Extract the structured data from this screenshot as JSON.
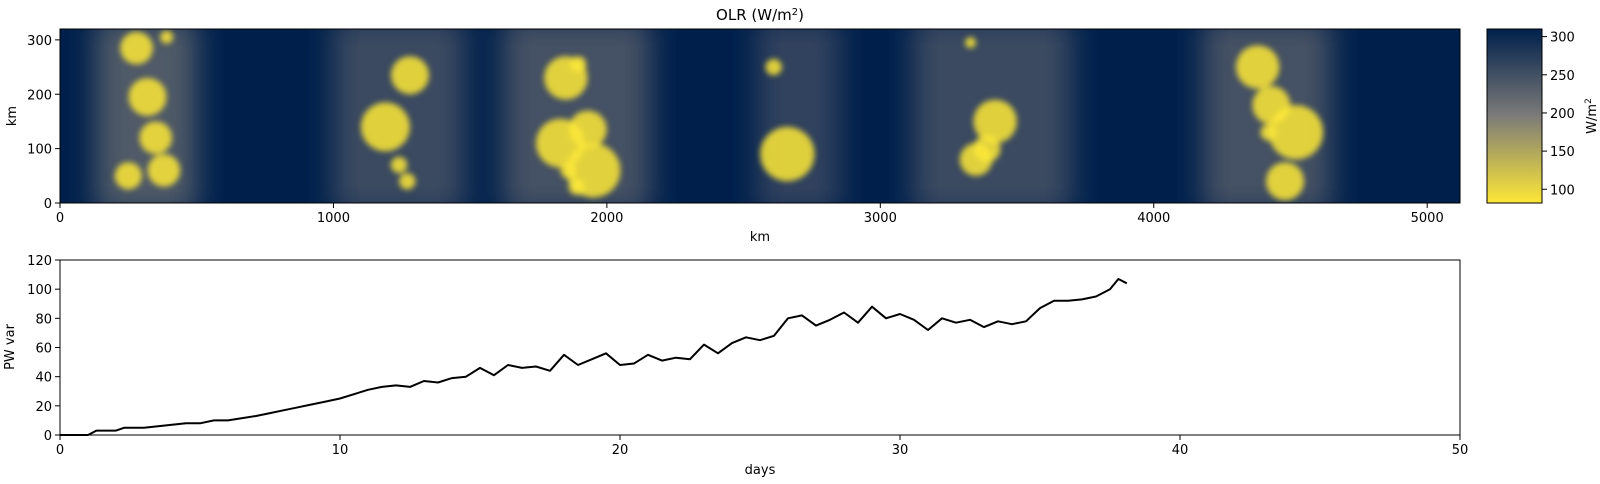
{
  "chart_data": [
    {
      "type": "heatmap",
      "title": "OLR (W/m2)",
      "title_main": "OLR (W/m",
      "title_sup": "2",
      "title_end": ")",
      "xlabel": "km",
      "ylabel": "km",
      "xlim": [
        0,
        5120
      ],
      "ylim": [
        0,
        320
      ],
      "xticks": [
        0,
        1000,
        2000,
        3000,
        4000,
        5000
      ],
      "yticks": [
        0,
        100,
        200,
        300
      ],
      "colormap": "cividis_r",
      "colorbar": {
        "label": "W/m2",
        "label_main": "W/m",
        "label_sup": "2",
        "range": [
          82,
          310
        ],
        "ticks": [
          100,
          150,
          200,
          250,
          300
        ],
        "low_color": "#fde737",
        "mid_color": "#7c7b78",
        "high_color": "#00204c"
      },
      "convective_bands_km": [
        {
          "x_start": 130,
          "x_end": 500,
          "intensity": 0.75
        },
        {
          "x_start": 1000,
          "x_end": 1480,
          "intensity": 0.55
        },
        {
          "x_start": 1620,
          "x_end": 2160,
          "intensity": 0.65
        },
        {
          "x_start": 2550,
          "x_end": 2850,
          "intensity": 0.45
        },
        {
          "x_start": 3120,
          "x_end": 3700,
          "intensity": 0.55
        },
        {
          "x_start": 4180,
          "x_end": 4650,
          "intensity": 0.65
        }
      ],
      "convective_cells": [
        {
          "x": 280,
          "y": 285,
          "r": 30
        },
        {
          "x": 390,
          "y": 305,
          "r": 12
        },
        {
          "x": 320,
          "y": 195,
          "r": 35
        },
        {
          "x": 350,
          "y": 120,
          "r": 30
        },
        {
          "x": 250,
          "y": 50,
          "r": 25
        },
        {
          "x": 380,
          "y": 60,
          "r": 30
        },
        {
          "x": 1190,
          "y": 140,
          "r": 45
        },
        {
          "x": 1280,
          "y": 235,
          "r": 35
        },
        {
          "x": 1240,
          "y": 70,
          "r": 15
        },
        {
          "x": 1270,
          "y": 40,
          "r": 15
        },
        {
          "x": 1830,
          "y": 110,
          "r": 45
        },
        {
          "x": 1930,
          "y": 135,
          "r": 35
        },
        {
          "x": 1895,
          "y": 255,
          "r": 15
        },
        {
          "x": 1890,
          "y": 30,
          "r": 15
        },
        {
          "x": 1860,
          "y": 60,
          "r": 15
        },
        {
          "x": 1950,
          "y": 60,
          "r": 50
        },
        {
          "x": 1850,
          "y": 230,
          "r": 40
        },
        {
          "x": 2660,
          "y": 90,
          "r": 50
        },
        {
          "x": 2610,
          "y": 250,
          "r": 15
        },
        {
          "x": 3420,
          "y": 150,
          "r": 40
        },
        {
          "x": 3350,
          "y": 80,
          "r": 30
        },
        {
          "x": 3330,
          "y": 295,
          "r": 10
        },
        {
          "x": 3390,
          "y": 100,
          "r": 25
        },
        {
          "x": 4380,
          "y": 250,
          "r": 40
        },
        {
          "x": 4430,
          "y": 180,
          "r": 35
        },
        {
          "x": 4520,
          "y": 130,
          "r": 50
        },
        {
          "x": 4480,
          "y": 40,
          "r": 35
        },
        {
          "x": 4420,
          "y": 130,
          "r": 15
        }
      ]
    },
    {
      "type": "line",
      "xlabel": "days",
      "ylabel": "PW var",
      "xlim": [
        0,
        50
      ],
      "ylim": [
        0,
        120
      ],
      "xticks": [
        0,
        10,
        20,
        30,
        40,
        50
      ],
      "yticks": [
        0,
        20,
        40,
        60,
        80,
        100,
        120
      ],
      "line_color": "#000000",
      "x": [
        0,
        1.0,
        1.3,
        2.0,
        2.3,
        3.0,
        3.5,
        4.0,
        4.5,
        5.0,
        5.5,
        6.0,
        7.0,
        7.5,
        8.0,
        8.5,
        9.0,
        9.5,
        10.0,
        10.5,
        11.0,
        11.5,
        12.0,
        12.5,
        13.0,
        13.5,
        14.0,
        14.5,
        15.0,
        15.5,
        16.0,
        16.5,
        17.0,
        17.5,
        18.0,
        18.5,
        19.0,
        19.5,
        20.0,
        20.5,
        21.0,
        21.5,
        22.0,
        22.5,
        23.0,
        23.5,
        24.0,
        24.5,
        25.0,
        25.5,
        26.0,
        26.5,
        27.0,
        27.5,
        28.0,
        28.5,
        29.0,
        29.5,
        30.0,
        30.5,
        31.0,
        31.5,
        32.0,
        32.5,
        33.0,
        33.5,
        34.0,
        34.5,
        35.0,
        35.5,
        36.0,
        36.5,
        37.0,
        37.5,
        37.8,
        38.1
      ],
      "y": [
        0,
        0,
        3,
        3,
        5,
        5,
        6,
        7,
        8,
        8,
        10,
        10,
        13,
        15,
        17,
        19,
        21,
        23,
        25,
        28,
        31,
        33,
        34,
        33,
        37,
        36,
        39,
        40,
        46,
        41,
        48,
        46,
        47,
        44,
        55,
        48,
        52,
        56,
        48,
        49,
        55,
        51,
        53,
        52,
        62,
        56,
        63,
        67,
        65,
        68,
        80,
        82,
        75,
        79,
        84,
        77,
        88,
        80,
        83,
        79,
        72,
        80,
        77,
        79,
        74,
        78,
        76,
        78,
        87,
        92,
        92,
        93,
        95,
        100,
        107,
        104
      ]
    }
  ]
}
